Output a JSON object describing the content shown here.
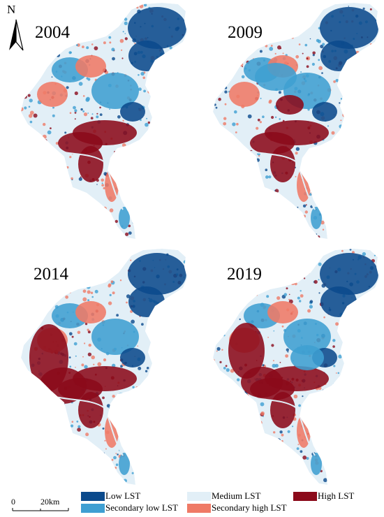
{
  "north_arrow": {
    "label": "N",
    "icon": "north-arrow-icon"
  },
  "panels": [
    {
      "year": "2004"
    },
    {
      "year": "2009"
    },
    {
      "year": "2014"
    },
    {
      "year": "2019"
    }
  ],
  "legend": {
    "items": [
      {
        "label": "Low LST",
        "color": "#0b4a8c"
      },
      {
        "label": "Medium LST",
        "color": "#e2eff7"
      },
      {
        "label": "High LST",
        "color": "#8b0a1a"
      },
      {
        "label": "Secondary low LST",
        "color": "#3f9fd2"
      },
      {
        "label": "Secondary high LST",
        "color": "#ef7a66"
      }
    ]
  },
  "scale_bar": {
    "start": "0",
    "end": "20km"
  },
  "colors": {
    "low": "#0b4a8c",
    "secondary_low": "#3f9fd2",
    "medium": "#e2eff7",
    "secondary_high": "#ef7a66",
    "high": "#8b0a1a"
  }
}
